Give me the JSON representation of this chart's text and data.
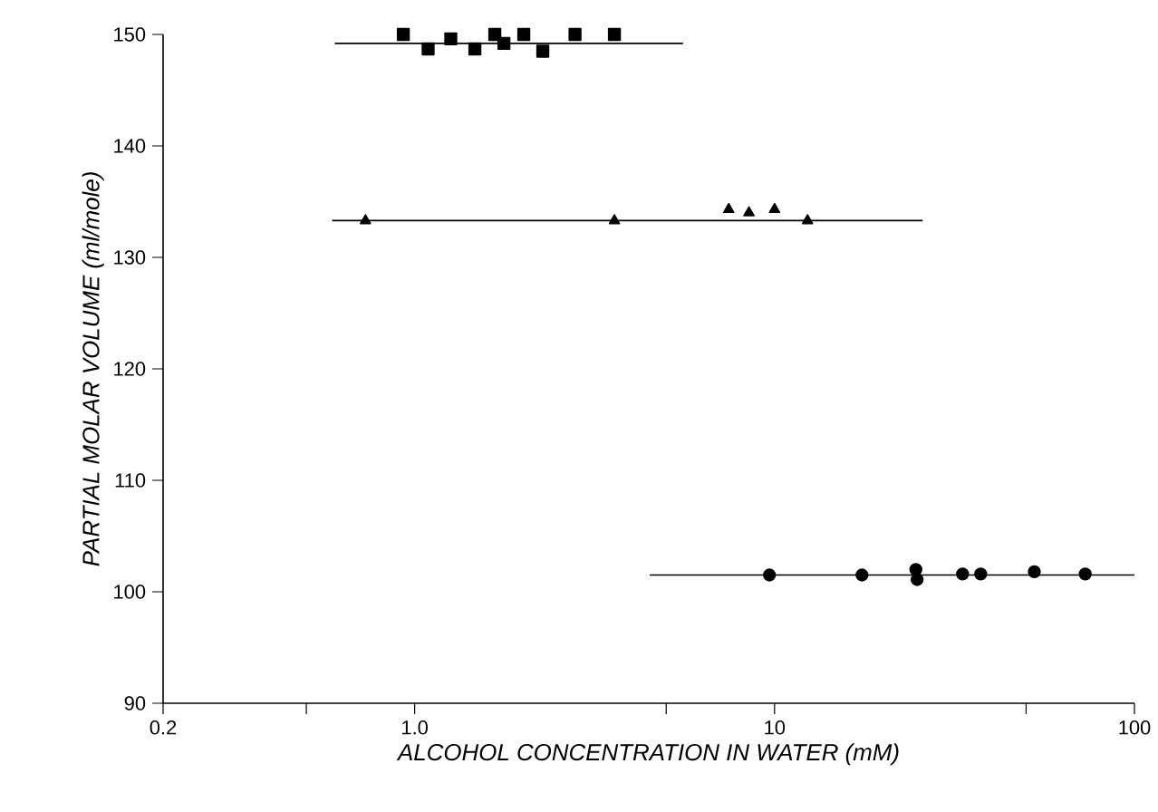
{
  "chart_data": {
    "type": "scatter",
    "xlabel": "ALCOHOL CONCENTRATION IN WATER (mM)",
    "ylabel": "PARTIAL MOLAR VOLUME (ml/mole)",
    "log": "x",
    "xlim": [
      0.2,
      100
    ],
    "ylim": [
      90,
      150
    ],
    "xticks": [
      {
        "value": 0.2,
        "label": "0.2"
      },
      {
        "value": 0.5,
        "label": null
      },
      {
        "value": 1,
        "label": "1.0"
      },
      {
        "value": 5,
        "label": null
      },
      {
        "value": 10,
        "label": "10"
      },
      {
        "value": 50,
        "label": null
      },
      {
        "value": 100,
        "label": "100"
      }
    ],
    "yticks": [
      90,
      100,
      110,
      120,
      130,
      140,
      150
    ],
    "series": [
      {
        "marker": "square",
        "color": "#000000",
        "x": [
          0.93,
          1.09,
          1.26,
          1.47,
          1.67,
          1.77,
          2.01,
          2.27,
          2.79,
          3.59
        ],
        "values": [
          150,
          148.7,
          149.6,
          148.7,
          150,
          149.2,
          150,
          148.5,
          150,
          150
        ]
      },
      {
        "type": "line",
        "marker": "none",
        "color": "#000000",
        "x": [
          0.6,
          5.57
        ],
        "values": [
          149.2,
          149.2
        ]
      },
      {
        "marker": "triangle",
        "color": "#000000",
        "x": [
          0.73,
          3.59,
          7.46,
          8.49,
          10.0,
          12.35
        ],
        "values": [
          133.3,
          133.3,
          134.3,
          134.0,
          134.3,
          133.3
        ]
      },
      {
        "type": "line",
        "marker": "none",
        "color": "#000000",
        "x": [
          0.59,
          25.8
        ],
        "values": [
          133.3,
          133.3
        ]
      },
      {
        "marker": "circle",
        "color": "#000000",
        "x": [
          9.68,
          17.5,
          24.7,
          24.9,
          33.3,
          37.4,
          52.7,
          73.0
        ],
        "values": [
          101.5,
          101.5,
          102.0,
          101.1,
          101.6,
          101.6,
          101.8,
          101.6
        ]
      },
      {
        "type": "line",
        "marker": "none",
        "color": "#000000",
        "x": [
          4.5,
          100
        ],
        "values": [
          101.5,
          101.5
        ]
      }
    ]
  }
}
